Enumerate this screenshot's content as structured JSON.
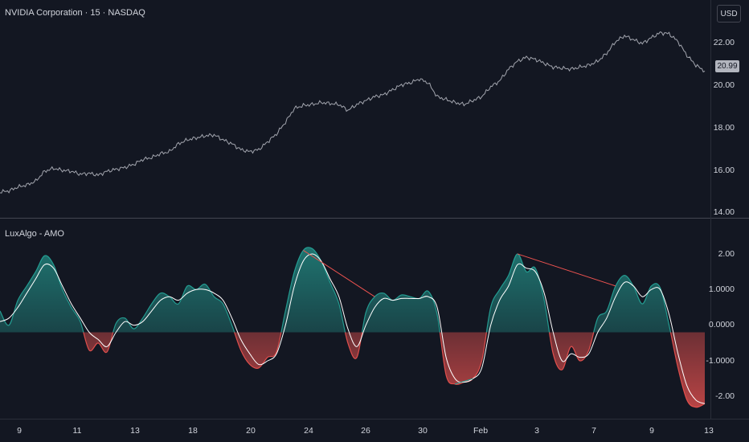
{
  "top_pane": {
    "title": "NVIDIA Corporation · 15 · NASDAQ",
    "currency": "USD",
    "last_price": "20.99",
    "y_labels": [
      "22.00",
      "20.00",
      "18.00",
      "16.00",
      "14.00"
    ]
  },
  "bottom_pane": {
    "title": "LuxAlgo - AMO",
    "y_labels": [
      "2.00",
      "1.0000",
      "0.0000",
      "-1.0000",
      "-2.00"
    ]
  },
  "x_axis": {
    "labels": [
      "9",
      "11",
      "13",
      "18",
      "20",
      "24",
      "26",
      "30",
      "Feb",
      "3",
      "7",
      "9",
      "13"
    ]
  },
  "colors": {
    "background": "#131722",
    "price_line": "#b2b5be",
    "bull": "#26a69a",
    "bear": "#ef5350",
    "signal_line": "#ffffff",
    "divergence_line": "#ef5350"
  },
  "chart_data": [
    {
      "type": "line",
      "title": "NVIDIA Corporation · 15 · NASDAQ",
      "xlabel": "",
      "ylabel": "",
      "ylim": [
        13.9,
        23.8
      ],
      "x_ticks": [
        "9",
        "11",
        "13",
        "18",
        "20",
        "24",
        "26",
        "30",
        "Feb",
        "3",
        "7",
        "9",
        "13"
      ],
      "series": [
        {
          "values": [
            14.85,
            14.9,
            15.1,
            15.2,
            15.4,
            15.9,
            16.05,
            15.95,
            15.9,
            15.75,
            15.8,
            15.7,
            15.9,
            16.0,
            16.1,
            16.25,
            16.5,
            16.6,
            16.8,
            16.9,
            17.3,
            17.5,
            17.6,
            17.7,
            17.75,
            17.5,
            17.3,
            17.0,
            16.9,
            17.0,
            17.4,
            17.8,
            18.4,
            19.1,
            19.25,
            19.3,
            19.4,
            19.35,
            19.3,
            19.0,
            19.3,
            19.5,
            19.7,
            19.8,
            20.05,
            20.3,
            20.4,
            20.6,
            20.4,
            19.7,
            19.55,
            19.4,
            19.3,
            19.5,
            19.7,
            20.2,
            20.5,
            21.1,
            21.5,
            21.7,
            21.6,
            21.4,
            21.2,
            21.15,
            21.1,
            21.2,
            21.3,
            21.5,
            21.9,
            22.5,
            22.8,
            22.6,
            22.4,
            22.7,
            22.95,
            22.9,
            22.5,
            21.8,
            21.3,
            21.0
          ]
        }
      ]
    },
    {
      "type": "area",
      "title": "LuxAlgo - AMO",
      "xlabel": "",
      "ylabel": "",
      "ylim": [
        -2.4,
        2.65
      ],
      "x_ticks": [
        "9",
        "11",
        "13",
        "18",
        "20",
        "24",
        "26",
        "30",
        "Feb",
        "3",
        "7",
        "9",
        "13"
      ],
      "series": [
        {
          "values": [
            0.6,
            0.2,
            0.9,
            1.3,
            1.7,
            2.15,
            1.9,
            1.2,
            0.7,
            0.3,
            -0.5,
            -0.3,
            -0.55,
            0.25,
            0.4,
            0.1,
            0.4,
            0.8,
            1.1,
            1.0,
            0.8,
            1.3,
            1.2,
            1.35,
            1.0,
            0.8,
            0.2,
            -0.5,
            -0.9,
            -1.0,
            -0.7,
            -0.55,
            0.6,
            1.7,
            2.3,
            2.35,
            2.0,
            1.4,
            0.8,
            -0.3,
            -0.7,
            0.55,
            1.0,
            1.1,
            0.9,
            1.05,
            1.0,
            0.95,
            1.15,
            0.5,
            -1.2,
            -1.45,
            -1.4,
            -1.3,
            -0.8,
            0.7,
            1.2,
            1.6,
            2.2,
            1.7,
            1.8,
            0.9,
            -0.6,
            -1.05,
            -0.4,
            -0.8,
            -0.5,
            0.4,
            0.6,
            1.3,
            1.6,
            1.3,
            0.8,
            1.3,
            1.25,
            0.2,
            -1.0,
            -1.9,
            -2.1,
            -2.0
          ]
        },
        {
          "values": [
            0.3,
            0.4,
            0.7,
            1.1,
            1.5,
            1.9,
            1.8,
            1.3,
            0.8,
            0.4,
            0.0,
            -0.2,
            -0.4,
            0.0,
            0.3,
            0.2,
            0.3,
            0.6,
            0.9,
            1.0,
            0.9,
            1.1,
            1.2,
            1.2,
            1.1,
            0.9,
            0.4,
            -0.2,
            -0.6,
            -0.9,
            -0.8,
            -0.6,
            0.2,
            1.3,
            2.0,
            2.2,
            2.0,
            1.5,
            1.0,
            0.1,
            -0.4,
            0.2,
            0.7,
            0.95,
            0.9,
            0.95,
            0.95,
            0.95,
            1.0,
            0.7,
            -0.7,
            -1.3,
            -1.4,
            -1.3,
            -1.0,
            0.2,
            0.9,
            1.3,
            1.9,
            1.8,
            1.7,
            1.1,
            0.0,
            -0.8,
            -0.6,
            -0.7,
            -0.6,
            0.0,
            0.4,
            1.0,
            1.4,
            1.3,
            1.0,
            1.2,
            1.2,
            0.5,
            -0.6,
            -1.5,
            -1.9,
            -2.0
          ]
        }
      ]
    }
  ]
}
